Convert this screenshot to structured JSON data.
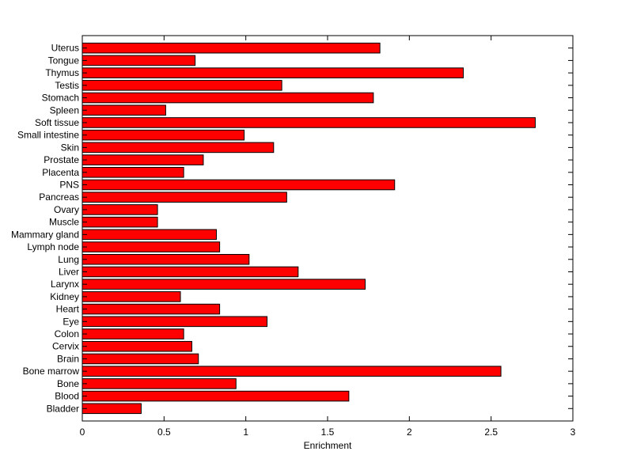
{
  "chart_data": {
    "type": "bar",
    "orientation": "horizontal",
    "title": "",
    "xlabel": "Enrichment",
    "ylabel": "",
    "xlim": [
      0,
      3
    ],
    "xticks": [
      0,
      0.5,
      1,
      1.5,
      2,
      2.5,
      3
    ],
    "xtick_labels": [
      "0",
      "0.5",
      "1",
      "1.5",
      "2",
      "2.5",
      "3"
    ],
    "grid": false,
    "bar_color": "#ff0000",
    "categories": [
      "Bladder",
      "Blood",
      "Bone",
      "Bone marrow",
      "Brain",
      "Cervix",
      "Colon",
      "Eye",
      "Heart",
      "Kidney",
      "Larynx",
      "Liver",
      "Lung",
      "Lymph node",
      "Mammary gland",
      "Muscle",
      "Ovary",
      "Pancreas",
      "PNS",
      "Placenta",
      "Prostate",
      "Skin",
      "Small intestine",
      "Soft tissue",
      "Spleen",
      "Stomach",
      "Testis",
      "Thymus",
      "Tongue",
      "Uterus"
    ],
    "values": [
      0.36,
      1.63,
      0.94,
      2.56,
      0.71,
      0.67,
      0.62,
      1.13,
      0.84,
      0.6,
      1.73,
      1.32,
      1.02,
      0.84,
      0.82,
      0.46,
      0.46,
      1.25,
      1.91,
      0.62,
      0.74,
      1.17,
      0.99,
      2.77,
      0.51,
      1.78,
      1.22,
      2.33,
      0.69,
      1.82
    ]
  }
}
